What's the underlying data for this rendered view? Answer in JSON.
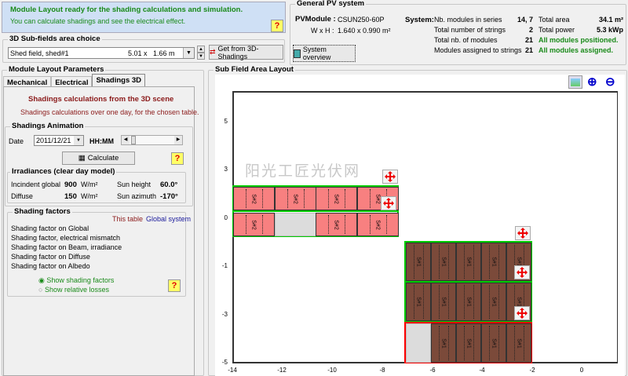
{
  "status": {
    "title": "Module Layout ready for the shading calculations and simulation.",
    "subtitle": "You can calculate shadings and see the electrical effect.",
    "help": "?"
  },
  "subfields": {
    "title": "3D Sub-fields area choice",
    "selected": "Shed field, shed#1",
    "dims": "5.01 x   1.66 m",
    "get_button": "Get from 3D-Shadings"
  },
  "pv": {
    "title": "General PV system",
    "module_label": "PVModule :",
    "module": "CSUN250-60P",
    "wh_label": "W x H :",
    "wh": "1.640 x 0.990 m²",
    "system_label": "System:",
    "rows": [
      {
        "label": "Nb. modules in series",
        "value": "14, 7"
      },
      {
        "label": "Total number of strings",
        "value": "2"
      },
      {
        "label": "Total nb. of modules",
        "value": "21"
      },
      {
        "label": "Modules assigned to strings",
        "value": "21"
      }
    ],
    "right": [
      {
        "label": "Total area",
        "value": "34.1 m²"
      },
      {
        "label": "Total power",
        "value": "5.3 kWp"
      }
    ],
    "ok1": "All modules positioned.",
    "ok2": "All modules assigned.",
    "overview_button": "System overview"
  },
  "params": {
    "title": "Module Layout Parameters",
    "tabs": [
      "Mechanical",
      "Electrical",
      "Shadings 3D"
    ],
    "active_tab": "Shadings 3D",
    "heading": "Shadings calculations from the 3D scene",
    "subheading": "Shadings calculations over one day, for the chosen table.",
    "anim_title": "Shadings Animation",
    "date_label": "Date",
    "date": "2011/12/21",
    "hhmm": "HH:MM",
    "calculate": "Calculate",
    "irr_title": "Irradiances  (clear day model)",
    "irr": [
      {
        "label": "Incindent global",
        "value": "900",
        "unit": "W/m²"
      },
      {
        "label": "Diffuse",
        "value": "150",
        "unit": "W/m²"
      }
    ],
    "sun": [
      {
        "label": "Sun height",
        "value": "60.0°"
      },
      {
        "label": "Sun azimuth",
        "value": "-170°"
      }
    ],
    "sf_title": "Shading factors",
    "this_table": "This table",
    "global_system": "Global system",
    "factors": [
      "Shading factor on Global",
      "Shading factor, electrical mismatch",
      "Shading factor on Beam, irradiance",
      "Shading factor on Diffuse",
      "Shading factor on Albedo"
    ],
    "radio1": "Show shading factors",
    "radio2": "Show relative losses",
    "radio_selected": "Show shading factors"
  },
  "layout": {
    "title": "Sub Field  Area  Layout",
    "watermark": "阳光工匠光伏网",
    "xticks": [
      "-14",
      "-12",
      "-10",
      "-8",
      "-6",
      "-4",
      "-2",
      "0"
    ],
    "yticks": [
      "5",
      "3",
      "0",
      "-1",
      "-3",
      "-5"
    ],
    "shed2_label": "S#2",
    "shed1_label": "S#1",
    "colors": {
      "shed2": "#f88080",
      "shed1": "#7b4a3a",
      "string_ok": "#00cc00",
      "string_err": "#ff0000"
    }
  }
}
